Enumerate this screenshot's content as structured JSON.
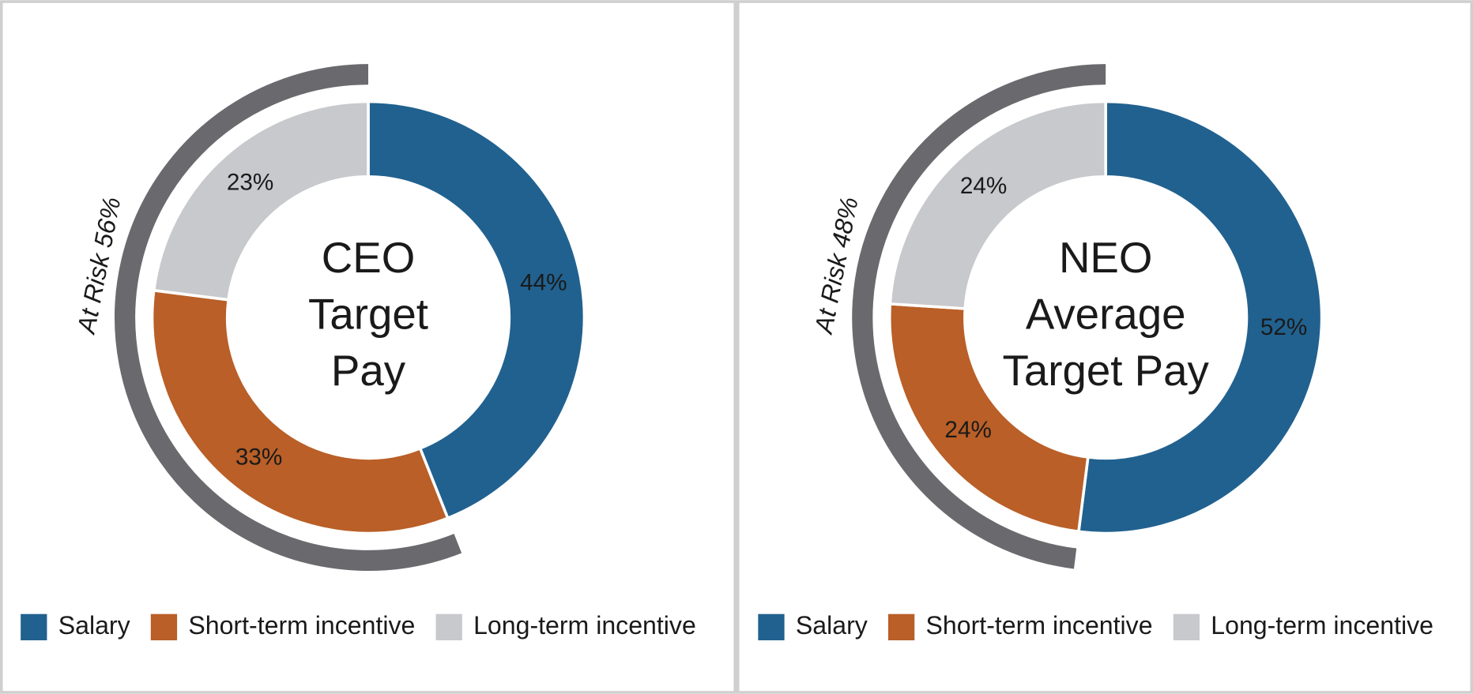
{
  "chart_data": [
    {
      "type": "donut",
      "title_lines": [
        "CEO",
        "Target",
        "Pay"
      ],
      "categories": [
        "Salary",
        "Short-term incentive",
        "Long-term incentive"
      ],
      "values": [
        44,
        33,
        23
      ],
      "value_labels": [
        "44%",
        "33%",
        "23%"
      ],
      "colors": [
        "#21618f",
        "#b95f27",
        "#c8c9cc"
      ],
      "at_risk": {
        "label": "At Risk 56%",
        "value": 56,
        "color": "#6a6a6e"
      }
    },
    {
      "type": "donut",
      "title_lines": [
        "NEO",
        "Average",
        "Target Pay"
      ],
      "categories": [
        "Salary",
        "Short-term incentive",
        "Long-term incentive"
      ],
      "values": [
        52,
        24,
        24
      ],
      "value_labels": [
        "52%",
        "24%",
        "24%"
      ],
      "colors": [
        "#21618f",
        "#b95f27",
        "#c8c9cc"
      ],
      "at_risk": {
        "label": "At Risk 48%",
        "value": 48,
        "color": "#6a6a6e"
      }
    }
  ]
}
